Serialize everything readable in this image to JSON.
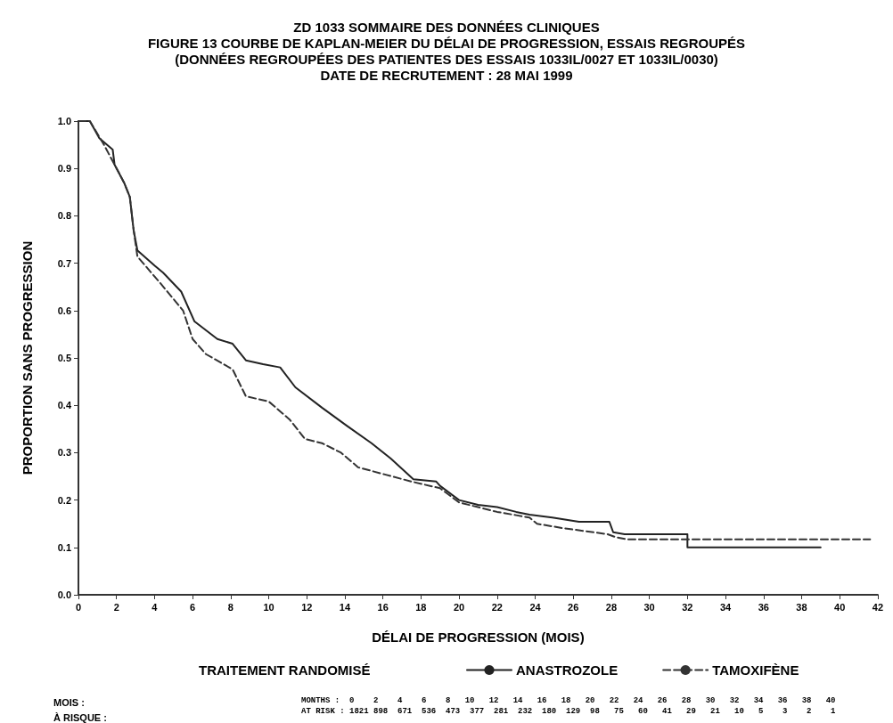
{
  "chart_data": {
    "type": "line",
    "title": "ZD 1033 SOMMAIRE DES DONNÉES CLINIQUES\nFIGURE 13 COURBE DE KAPLAN-MEIER DU DÉLAI DE PROGRESSION, ESSAIS REGROUPÉS\n(DONNÉES REGROUPÉES DES PATIENTES DES ESSAIS 1033IL/0027 ET 1033IL/0030)\nDATE DE RECRUTEMENT : 28 MAI 1999",
    "xlabel": "DÉLAI DE PROGRESSION (MOIS)",
    "ylabel": "PROPORTION SANS PROGRESSION",
    "legend_title": "TRAITEMENT RANDOMISÉ",
    "series": [
      {
        "name": "ANASTROZOLE",
        "color": "#222222",
        "line_style": "solid",
        "x": [
          0,
          0.6,
          1.1,
          1.8,
          1.9,
          2.4,
          2.7,
          2.9,
          3.1,
          4.0,
          4.45,
          5.4,
          6.1,
          7.3,
          8.1,
          8.8,
          9.7,
          10.6,
          11.4,
          12.8,
          14.1,
          15.4,
          16.4,
          17.6,
          18.8,
          19,
          20,
          21,
          22,
          23,
          23.7,
          24.9,
          26.3,
          27.9,
          28.1,
          28.7,
          32.0,
          32.0,
          39.0
        ],
        "values": [
          1.0,
          1.0,
          0.964,
          0.94,
          0.908,
          0.87,
          0.84,
          0.77,
          0.727,
          0.695,
          0.68,
          0.64,
          0.577,
          0.54,
          0.53,
          0.495,
          0.487,
          0.48,
          0.438,
          0.395,
          0.357,
          0.32,
          0.288,
          0.244,
          0.239,
          0.23,
          0.2,
          0.19,
          0.185,
          0.175,
          0.169,
          0.163,
          0.154,
          0.154,
          0.132,
          0.128,
          0.128,
          0.1,
          0.1
        ]
      },
      {
        "name": "TAMOXIFÈNE",
        "color": "#333333",
        "line_style": "dashed",
        "x": [
          0,
          0.6,
          1.3,
          1.9,
          2.4,
          2.7,
          2.9,
          3.1,
          4.3,
          5.5,
          6.0,
          6.7,
          8.1,
          8.8,
          10.0,
          11.1,
          11.9,
          12.8,
          13.8,
          14.7,
          16.1,
          17.5,
          19,
          20,
          21,
          22,
          23,
          23.7,
          24.1,
          25.4,
          27.8,
          28.2,
          28.8,
          32.0,
          41.6
        ],
        "values": [
          1.0,
          1.0,
          0.953,
          0.908,
          0.87,
          0.84,
          0.77,
          0.714,
          0.658,
          0.6,
          0.54,
          0.508,
          0.476,
          0.419,
          0.408,
          0.37,
          0.329,
          0.32,
          0.3,
          0.269,
          0.254,
          0.239,
          0.225,
          0.195,
          0.185,
          0.175,
          0.168,
          0.163,
          0.15,
          0.141,
          0.128,
          0.122,
          0.117,
          0.117,
          0.117
        ]
      }
    ],
    "xlim": [
      0,
      42
    ],
    "xticks": [
      0,
      2,
      4,
      6,
      8,
      10,
      12,
      14,
      16,
      18,
      20,
      22,
      24,
      26,
      28,
      30,
      32,
      34,
      36,
      38,
      40,
      42
    ],
    "ylim": [
      0,
      1
    ],
    "yticks": [
      {
        "value": 0,
        "label": "0.0"
      },
      0.1,
      0.2,
      0.3,
      0.4,
      0.5,
      0.6,
      0.7,
      0.8,
      0.9,
      {
        "value": 1,
        "label": "1.0"
      }
    ],
    "grid": false,
    "legend": "bottom",
    "marker": "none",
    "annotations": [
      "MOIS :",
      "À RISQUE :",
      "MONTHS :  0    2    4    6    8   10   12   14   16   18   20   22   24   26   28   30   32   34   36   38   40",
      "AT RISK : 1821 898  671  536  473  377  281  232  180  129  98   75   60   41   29   21   10   5    3    2    1"
    ]
  }
}
